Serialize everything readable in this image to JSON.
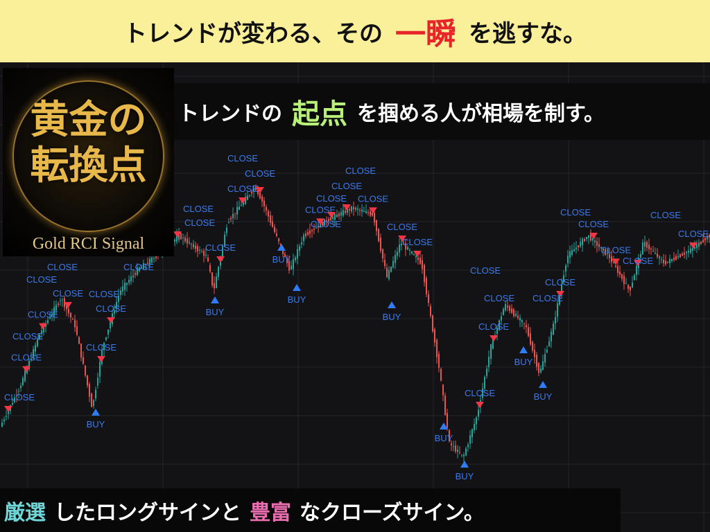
{
  "top_banner": {
    "before": "トレンドが変わる、その",
    "accent": "一瞬",
    "after": "を逃すな。",
    "accent_color": "#e8232a"
  },
  "logo": {
    "title_line1": "黄金の",
    "title_line2": "転換点",
    "subtitle": "Gold RCI Signal"
  },
  "mid_banner": {
    "before": "トレンドの",
    "accent": "起点",
    "after": "を掴める人が相場を制す。",
    "accent_color": "#b8f07a"
  },
  "bottom_banner": {
    "accent1": "厳選",
    "middle": "したロングサインと",
    "accent2": "豊富",
    "after": "なクローズサイン。",
    "accent1_color": "#6fd6d8",
    "accent2_color": "#ea6db0"
  },
  "chart": {
    "close_label": "CLOSE",
    "buy_label": "BUY",
    "up_color": "#26a69a",
    "down_color": "#ef5350",
    "buy_color": "#2f7df6",
    "sell_color": "#f23645",
    "label_color": "#3a7bf0"
  }
}
